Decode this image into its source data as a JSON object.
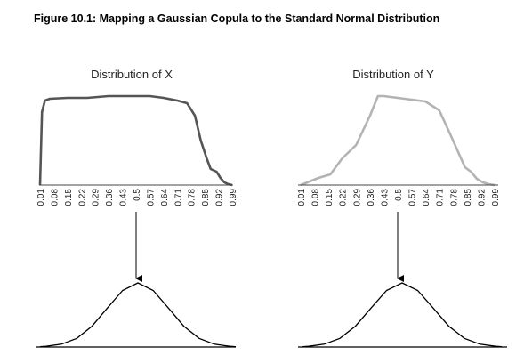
{
  "figure": {
    "title": "Figure 10.1: Mapping a Gaussian Copula to the Standard Normal Distribution"
  },
  "chart_data": [
    {
      "type": "area",
      "title": "Distribution of X",
      "color": "#555555",
      "x_tick_labels": [
        "0.01",
        "0.08",
        "0.15",
        "0.22",
        "0.29",
        "0.36",
        "0.43",
        "0.5",
        "0.57",
        "0.64",
        "0.71",
        "0.78",
        "0.85",
        "0.92",
        "0.99"
      ],
      "x": [
        0.01,
        0.02,
        0.035,
        0.06,
        0.15,
        0.25,
        0.36,
        0.43,
        0.5,
        0.57,
        0.64,
        0.71,
        0.76,
        0.8,
        0.83,
        0.86,
        0.88,
        0.91,
        0.93,
        0.95,
        0.97,
        0.99
      ],
      "y": [
        0,
        0.82,
        0.95,
        0.97,
        0.98,
        0.98,
        1.0,
        1.0,
        1.0,
        1.0,
        0.98,
        0.95,
        0.92,
        0.78,
        0.5,
        0.3,
        0.18,
        0.15,
        0.08,
        0.03,
        0.01,
        0
      ],
      "ylim": [
        0,
        1
      ],
      "marker_x": 0.5
    },
    {
      "type": "area",
      "title": "Distribution of Y",
      "color": "#b3b3b3",
      "x_tick_labels": [
        "0.01",
        "0.08",
        "0.15",
        "0.22",
        "0.29",
        "0.36",
        "0.43",
        "0.5",
        "0.57",
        "0.64",
        "0.71",
        "0.78",
        "0.85",
        "0.92",
        "0.99"
      ],
      "x": [
        0.01,
        0.1,
        0.16,
        0.22,
        0.29,
        0.36,
        0.4,
        0.43,
        0.5,
        0.57,
        0.64,
        0.71,
        0.76,
        0.8,
        0.84,
        0.87,
        0.9,
        0.93,
        0.96,
        0.99
      ],
      "y": [
        0,
        0.08,
        0.12,
        0.3,
        0.45,
        0.78,
        1.0,
        1.0,
        0.98,
        0.96,
        0.94,
        0.84,
        0.6,
        0.4,
        0.2,
        0.15,
        0.07,
        0.03,
        0.01,
        0
      ],
      "ylim": [
        0,
        1
      ],
      "marker_x": 0.5
    },
    {
      "type": "line",
      "title": "",
      "curve": "standard-normal-density",
      "x": [
        -3.2,
        -3,
        -2.5,
        -2,
        -1.5,
        -1,
        -0.5,
        0,
        0.5,
        1,
        1.5,
        2,
        2.5,
        3,
        3.2
      ],
      "y": [
        0.0024,
        0.0044,
        0.0175,
        0.054,
        0.1295,
        0.242,
        0.352,
        0.399,
        0.352,
        0.242,
        0.1295,
        0.054,
        0.0175,
        0.0044,
        0.0024
      ],
      "color": "#000000"
    },
    {
      "type": "line",
      "title": "",
      "curve": "standard-normal-density",
      "x": [
        -3.2,
        -3,
        -2.5,
        -2,
        -1.5,
        -1,
        -0.5,
        0,
        0.5,
        1,
        1.5,
        2,
        2.5,
        3,
        3.2
      ],
      "y": [
        0.0024,
        0.0044,
        0.0175,
        0.054,
        0.1295,
        0.242,
        0.352,
        0.399,
        0.352,
        0.242,
        0.1295,
        0.054,
        0.0175,
        0.0044,
        0.0024
      ],
      "color": "#000000"
    }
  ]
}
